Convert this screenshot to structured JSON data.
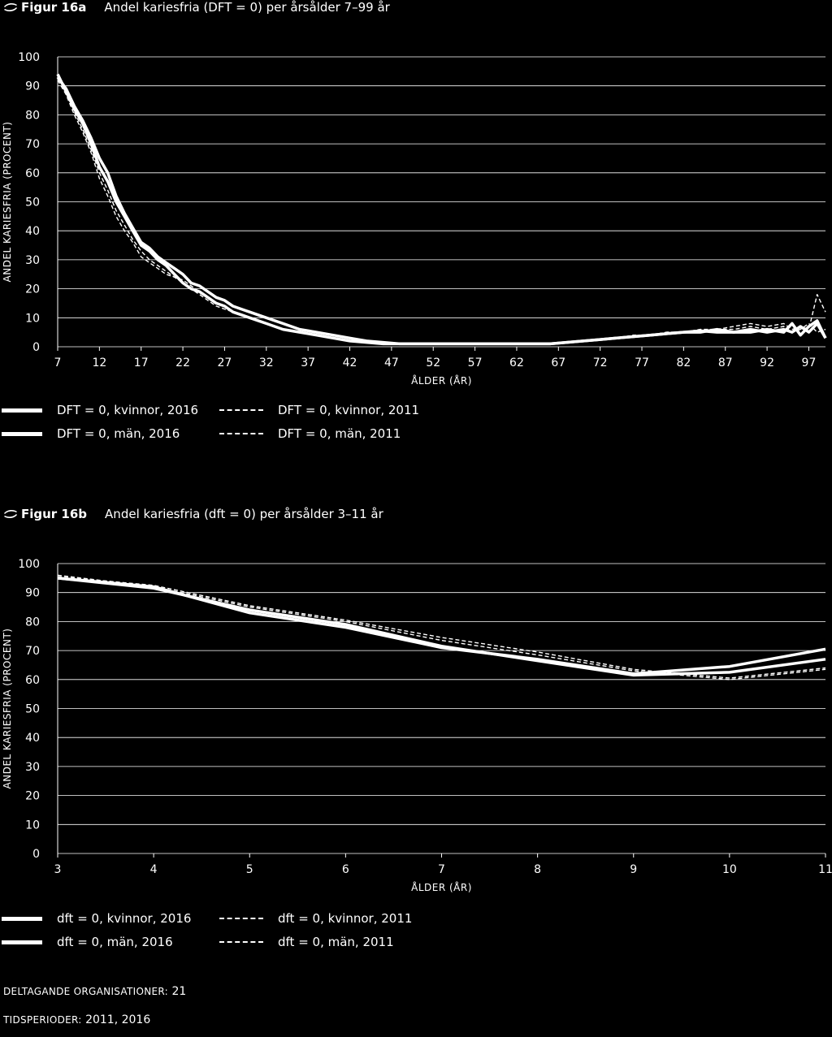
{
  "chart_data": [
    {
      "type": "line",
      "figure_label": "Figur 16a",
      "title": "Andel kariesfria (DFT = 0) per årsålder 7–99 år",
      "xlabel": "ÅLDER (ÅR)",
      "ylabel": "ANDEL KARIESFRIA (PROCENT)",
      "ylim": [
        0,
        100
      ],
      "xlim": [
        7,
        99
      ],
      "xticks": [
        "7",
        "12",
        "17",
        "22",
        "27",
        "32",
        "37",
        "42",
        "47",
        "52",
        "57",
        "62",
        "67",
        "72",
        "77",
        "82",
        "87",
        "92",
        "97"
      ],
      "yticks": [
        "0",
        "10",
        "20",
        "30",
        "40",
        "50",
        "60",
        "70",
        "80",
        "90",
        "100"
      ],
      "grid": true,
      "series": [
        {
          "name": "DFT = 0, kvinnor, 2016",
          "style": "solid",
          "x": [
            7,
            8,
            9,
            10,
            11,
            12,
            13,
            14,
            15,
            16,
            17,
            18,
            19,
            20,
            21,
            22,
            23,
            24,
            25,
            26,
            27,
            28,
            29,
            30,
            32,
            34,
            36,
            38,
            40,
            42,
            44,
            46,
            48,
            50,
            52,
            54,
            56,
            58,
            60,
            62,
            64,
            66,
            68,
            70,
            72,
            74,
            76,
            78,
            80,
            82,
            84,
            86,
            88,
            90,
            92,
            94,
            95,
            96,
            97,
            98,
            99
          ],
          "y": [
            94,
            88,
            82,
            77,
            70,
            62,
            57,
            50,
            45,
            40,
            35,
            33,
            30,
            28,
            25,
            22,
            20,
            19,
            17,
            15,
            14,
            12,
            11,
            10,
            8,
            6,
            5,
            4,
            3,
            2,
            1.5,
            1,
            1,
            1,
            1,
            1,
            1,
            1,
            1,
            1,
            1,
            1,
            1.5,
            2,
            2.5,
            3,
            3.5,
            4,
            4.5,
            5,
            5.5,
            5,
            5,
            6,
            5,
            6,
            5,
            7,
            5,
            8,
            3
          ]
        },
        {
          "name": "DFT = 0, män, 2016",
          "style": "solid",
          "x": [
            7,
            8,
            9,
            10,
            11,
            12,
            13,
            14,
            15,
            16,
            17,
            18,
            19,
            20,
            21,
            22,
            23,
            24,
            25,
            26,
            27,
            28,
            29,
            30,
            32,
            34,
            36,
            38,
            40,
            42,
            44,
            46,
            48,
            50,
            52,
            54,
            56,
            58,
            60,
            62,
            64,
            66,
            68,
            70,
            72,
            74,
            76,
            78,
            80,
            82,
            84,
            86,
            88,
            90,
            92,
            94,
            95,
            96,
            97,
            98,
            99
          ],
          "y": [
            93,
            89,
            83,
            78,
            72,
            65,
            60,
            52,
            46,
            41,
            36,
            34,
            31,
            29,
            27,
            25,
            22,
            21,
            19,
            17,
            16,
            14,
            13,
            12,
            10,
            8,
            6,
            5,
            4,
            3,
            2,
            1.5,
            1,
            1,
            1,
            1,
            1,
            1,
            1,
            1,
            1,
            1,
            1.5,
            2,
            2.5,
            3,
            3.5,
            4,
            4.5,
            5,
            5,
            6,
            5,
            5,
            6,
            5,
            8,
            4,
            7,
            9,
            3
          ]
        },
        {
          "name": "DFT = 0, kvinnor, 2011",
          "style": "dashed",
          "x": [
            7,
            8,
            9,
            10,
            11,
            12,
            13,
            14,
            15,
            16,
            17,
            18,
            19,
            20,
            21,
            22,
            23,
            24,
            25,
            26,
            27,
            28,
            29,
            30,
            32,
            34,
            36,
            38,
            40,
            42,
            44,
            46,
            48,
            50,
            52,
            54,
            56,
            58,
            60,
            62,
            64,
            66,
            68,
            70,
            72,
            74,
            76,
            78,
            80,
            82,
            84,
            86,
            88,
            90,
            92,
            94,
            95,
            96,
            97,
            98,
            99
          ],
          "y": [
            92,
            87,
            80,
            74,
            67,
            58,
            52,
            45,
            40,
            36,
            31,
            29,
            27,
            25,
            24,
            22,
            20,
            18,
            16,
            14,
            13,
            12,
            11,
            10,
            8,
            6,
            5,
            4,
            3,
            2,
            1.5,
            1,
            1,
            1,
            1,
            1,
            1,
            1,
            1,
            1,
            1,
            1,
            1.5,
            2,
            2.5,
            3,
            3.5,
            4,
            5,
            5,
            6,
            6,
            7,
            8,
            7,
            8,
            6,
            7,
            6,
            18,
            12
          ]
        },
        {
          "name": "DFT = 0, män, 2011",
          "style": "dashed",
          "x": [
            7,
            8,
            9,
            10,
            11,
            12,
            13,
            14,
            15,
            16,
            17,
            18,
            19,
            20,
            21,
            22,
            23,
            24,
            25,
            26,
            27,
            28,
            29,
            30,
            32,
            34,
            36,
            38,
            40,
            42,
            44,
            46,
            48,
            50,
            52,
            54,
            56,
            58,
            60,
            62,
            64,
            66,
            68,
            70,
            72,
            74,
            76,
            78,
            80,
            82,
            84,
            86,
            88,
            90,
            92,
            94,
            95,
            96,
            97,
            98,
            99
          ],
          "y": [
            93,
            88,
            81,
            75,
            68,
            60,
            54,
            47,
            42,
            37,
            33,
            30,
            28,
            26,
            24,
            23,
            21,
            19,
            17,
            15,
            14,
            12,
            11,
            10,
            8,
            6,
            5,
            4,
            3,
            2,
            1.5,
            1,
            1,
            1,
            1,
            1,
            1,
            1,
            1,
            1,
            1,
            1,
            1.5,
            2,
            2.5,
            3,
            4,
            4,
            5,
            5,
            5,
            6,
            6,
            7,
            6,
            7,
            5,
            6,
            8,
            5,
            6
          ]
        }
      ]
    },
    {
      "type": "line",
      "figure_label": "Figur 16b",
      "title": "Andel kariesfria (dft = 0) per årsålder 3–11 år",
      "xlabel": "ÅLDER (ÅR)",
      "ylabel": "ANDEL KARIESFRIA (PROCENT)",
      "ylim": [
        0,
        100
      ],
      "xlim": [
        3,
        11
      ],
      "xticks": [
        "3",
        "4",
        "5",
        "6",
        "7",
        "8",
        "9",
        "10",
        "11"
      ],
      "yticks": [
        "0",
        "10",
        "20",
        "30",
        "40",
        "50",
        "60",
        "70",
        "80",
        "90",
        "100"
      ],
      "grid": true,
      "series": [
        {
          "name": "dft = 0, kvinnor, 2016",
          "style": "solid",
          "x": [
            3,
            4,
            5,
            6,
            7,
            8,
            9,
            10,
            11
          ],
          "y": [
            95,
            92,
            83,
            78,
            71,
            67,
            62,
            64.5,
            70.5
          ]
        },
        {
          "name": "dft = 0, män, 2016",
          "style": "solid",
          "x": [
            3,
            4,
            5,
            6,
            7,
            8,
            9,
            10,
            11
          ],
          "y": [
            95,
            91.5,
            84,
            79,
            71.5,
            66.5,
            61.5,
            62.5,
            67
          ]
        },
        {
          "name": "dft = 0, kvinnor, 2011",
          "style": "dashed",
          "x": [
            3,
            4,
            5,
            6,
            7,
            8,
            9,
            10,
            11
          ],
          "y": [
            95.5,
            92.5,
            85.5,
            80.5,
            74.5,
            69.5,
            63.5,
            60.5,
            64
          ]
        },
        {
          "name": "dft = 0, män, 2011",
          "style": "dashed",
          "x": [
            3,
            4,
            5,
            6,
            7,
            8,
            9,
            10,
            11
          ],
          "y": [
            96,
            92,
            85,
            80,
            73.5,
            68.5,
            63,
            60,
            63.5
          ]
        }
      ]
    }
  ],
  "footer": {
    "orgs_label": "DELTAGANDE ORGANISATIONER:",
    "orgs_value": "21",
    "periods_label": "TIDSPERIODER:",
    "periods_value": "2011, 2016"
  }
}
